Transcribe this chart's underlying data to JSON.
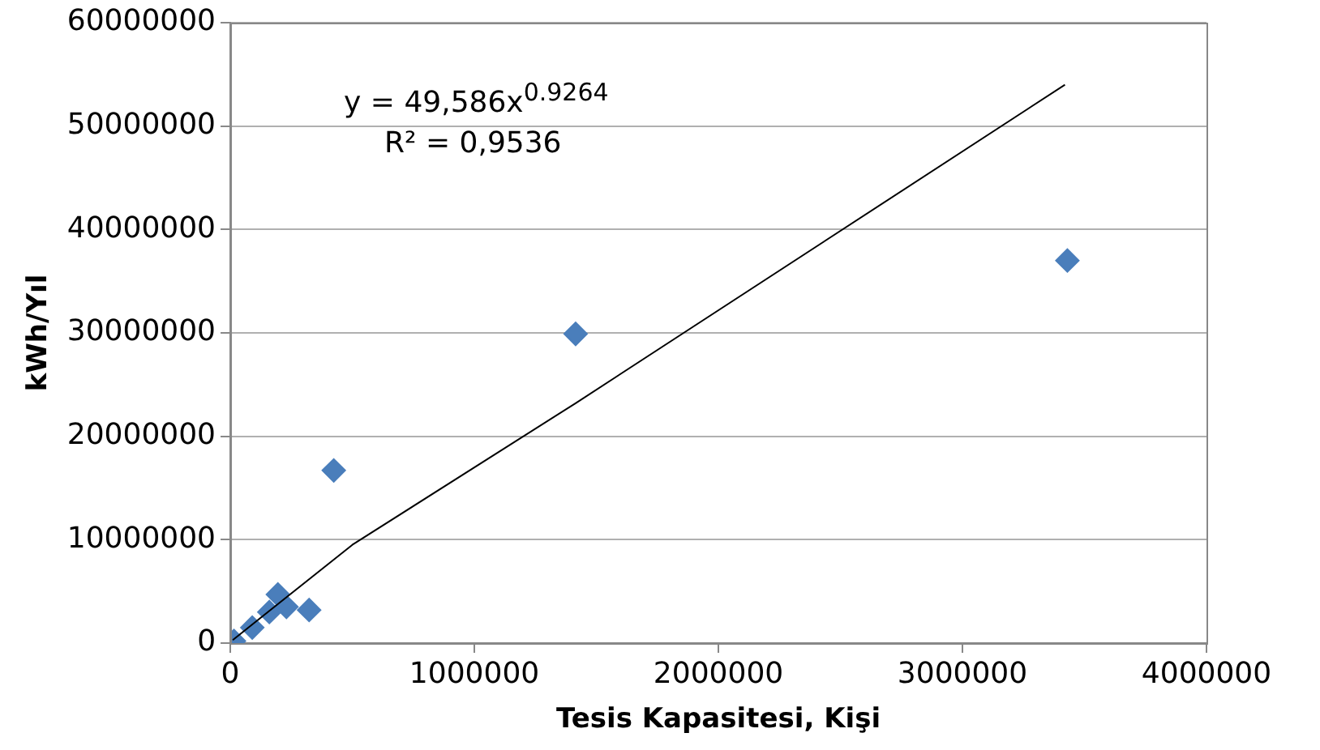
{
  "chart_data": {
    "type": "scatter",
    "xlabel": "Tesis Kapasitesi, Kişi",
    "ylabel": "kWh/Yıl",
    "annotations": [
      "y = 49,586x$^{0.9264}$",
      "R² = 0,9536"
    ],
    "xlim": [
      0,
      4000000
    ],
    "xticks": [
      0,
      1000000,
      2000000,
      3000000,
      4000000
    ],
    "ylim": [
      0,
      60000000
    ],
    "yticks": [
      0,
      10000000,
      20000000,
      30000000,
      40000000,
      50000000,
      60000000
    ],
    "grid": "y",
    "marker": "diamond",
    "legend": false,
    "series": [
      {
        "color": "#4a7ebb",
        "x": [
          15000,
          90000,
          160000,
          195000,
          230000,
          323000,
          424000,
          1415000,
          3430000
        ],
        "values": [
          200000,
          1500000,
          3000000,
          4700000,
          3500000,
          3200000,
          16700000,
          29900000,
          37000000
        ]
      },
      {
        "type": "line",
        "color": "#000000",
        "marker": "none",
        "x": [
          10000,
          500000,
          1415000,
          3420000
        ],
        "values": [
          300000,
          9500000,
          23200000,
          54000000
        ]
      }
    ]
  }
}
